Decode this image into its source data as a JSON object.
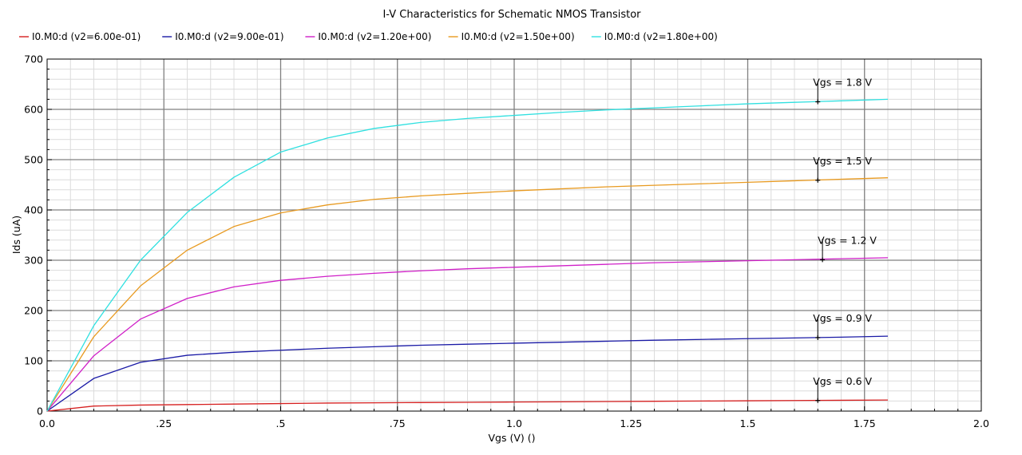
{
  "chart_data": {
    "type": "line",
    "title": "I-V Characteristics for Schematic NMOS Transistor",
    "xlabel": "Vgs (V) ()",
    "ylabel": "Ids (uA)",
    "xlim": [
      0,
      2.0
    ],
    "ylim": [
      0,
      700
    ],
    "x_ticks": [
      0,
      0.25,
      0.5,
      0.75,
      1.0,
      1.25,
      1.5,
      1.75,
      2.0
    ],
    "x_tick_labels": [
      "0.0",
      ".25",
      ".5",
      ".75",
      "1.0",
      "1.25",
      "1.5",
      "1.75",
      "2.0"
    ],
    "y_ticks": [
      0,
      100,
      200,
      300,
      400,
      500,
      600,
      700
    ],
    "y_tick_labels": [
      "0",
      "100",
      "200",
      "300",
      "400",
      "500",
      "600",
      "700"
    ],
    "grid": true,
    "legend_placement": "top",
    "series": [
      {
        "name": "I0.M0:d (v2=6.00e-01)",
        "color": "#d62020",
        "x": [
          0,
          0.1,
          0.2,
          0.3,
          0.4,
          0.5,
          0.6,
          0.7,
          0.8,
          0.9,
          1.0,
          1.1,
          1.2,
          1.3,
          1.4,
          1.5,
          1.6,
          1.7,
          1.8
        ],
        "y": [
          0,
          10,
          12,
          13,
          14,
          15,
          16,
          16.5,
          17,
          17.5,
          18,
          18.5,
          19,
          19.5,
          20,
          20.5,
          21,
          21.5,
          22
        ]
      },
      {
        "name": "I0.M0:d (v2=9.00e-01)",
        "color": "#1a1aa6",
        "x": [
          0,
          0.1,
          0.2,
          0.3,
          0.4,
          0.5,
          0.6,
          0.7,
          0.8,
          0.9,
          1.0,
          1.1,
          1.2,
          1.3,
          1.4,
          1.5,
          1.6,
          1.7,
          1.8
        ],
        "y": [
          0,
          65,
          97,
          111,
          117,
          121,
          125,
          128,
          131,
          133,
          135,
          137,
          139,
          141,
          142.5,
          144,
          145.5,
          147,
          149
        ]
      },
      {
        "name": "I0.M0:d (v2=1.20e+00)",
        "color": "#d020c8",
        "x": [
          0,
          0.1,
          0.2,
          0.3,
          0.4,
          0.5,
          0.6,
          0.7,
          0.8,
          0.9,
          1.0,
          1.1,
          1.2,
          1.3,
          1.4,
          1.5,
          1.6,
          1.7,
          1.8
        ],
        "y": [
          0,
          110,
          183,
          224,
          247,
          260,
          268,
          274,
          279,
          283,
          286,
          289,
          292,
          295,
          297,
          299,
          301,
          303,
          305
        ]
      },
      {
        "name": "I0.M0:d (v2=1.50e+00)",
        "color": "#e89a20",
        "x": [
          0,
          0.1,
          0.2,
          0.3,
          0.4,
          0.5,
          0.6,
          0.7,
          0.8,
          0.9,
          1.0,
          1.1,
          1.2,
          1.3,
          1.4,
          1.5,
          1.6,
          1.7,
          1.8
        ],
        "y": [
          0,
          148,
          249,
          320,
          367,
          394,
          410,
          421,
          428,
          433,
          438,
          442,
          446,
          449,
          452,
          455,
          458,
          461,
          464
        ]
      },
      {
        "name": "I0.M0:d (v2=1.80e+00)",
        "color": "#30e0e0",
        "x": [
          0,
          0.1,
          0.2,
          0.3,
          0.4,
          0.5,
          0.6,
          0.7,
          0.8,
          0.9,
          1.0,
          1.1,
          1.2,
          1.3,
          1.4,
          1.5,
          1.6,
          1.7,
          1.8
        ],
        "y": [
          0,
          170,
          300,
          395,
          465,
          515,
          543,
          562,
          574,
          582,
          588,
          594,
          599,
          603,
          607,
          611,
          614,
          617,
          620
        ]
      }
    ],
    "annotations": [
      {
        "text": "Vgs = 1.8 V",
        "x": 1.65,
        "y": 615
      },
      {
        "text": "Vgs = 1.5 V",
        "x": 1.65,
        "y": 459
      },
      {
        "text": "Vgs = 1.2 V",
        "x": 1.66,
        "y": 301
      },
      {
        "text": "Vgs = 0.9 V",
        "x": 1.65,
        "y": 146
      },
      {
        "text": "Vgs = 0.6 V",
        "x": 1.65,
        "y": 21
      }
    ]
  }
}
